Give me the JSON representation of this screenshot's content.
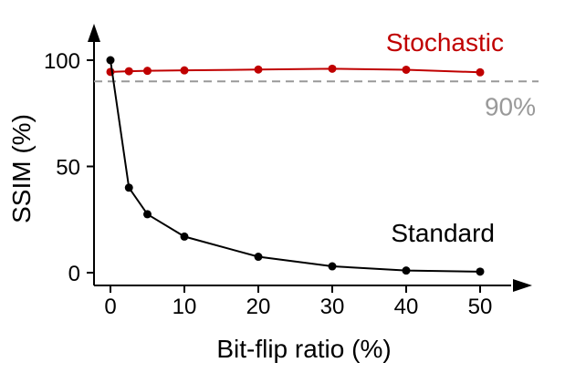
{
  "chart_data": {
    "type": "line",
    "title": "",
    "xlabel": "Bit-flip ratio (%)",
    "ylabel": "SSIM (%)",
    "xlim": [
      -2,
      56
    ],
    "ylim": [
      -3,
      112
    ],
    "xticks": [
      0,
      10,
      20,
      30,
      40,
      50
    ],
    "yticks": [
      0,
      50,
      100
    ],
    "grid": false,
    "legend": "inline labels",
    "series": [
      {
        "name": "Stochastic",
        "color": "#c00000",
        "x": [
          0,
          2.5,
          5,
          10,
          20,
          30,
          40,
          50
        ],
        "y": [
          94.5,
          94.8,
          95,
          95.2,
          95.6,
          96,
          95.5,
          94.3
        ]
      },
      {
        "name": "Standard",
        "color": "#000000",
        "x": [
          0,
          2.5,
          5,
          10,
          20,
          30,
          40,
          50
        ],
        "y": [
          100,
          40,
          27.5,
          17,
          7.5,
          3,
          1,
          0.5
        ]
      }
    ],
    "reference_line": {
      "y": 90,
      "label": "90%",
      "color": "#999999",
      "style": "dashed"
    }
  }
}
